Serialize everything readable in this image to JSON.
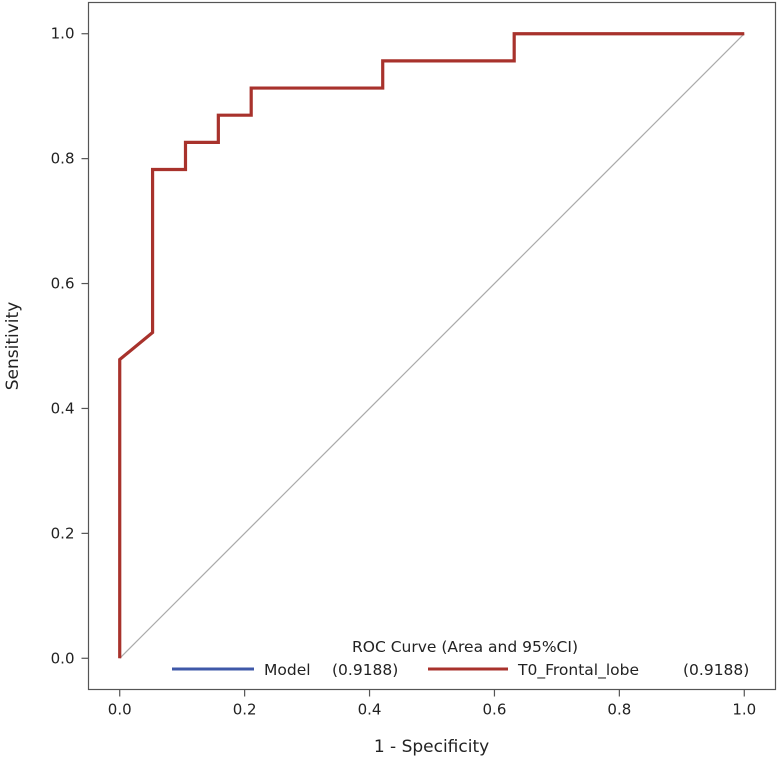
{
  "chart_data": {
    "type": "line",
    "title": "",
    "xlabel": "1 - Specificity",
    "ylabel": "Sensitivity",
    "xlim": [
      -0.05,
      1.05
    ],
    "ylim": [
      -0.05,
      1.05
    ],
    "grid": false,
    "xticks": [
      0.0,
      0.2,
      0.4,
      0.6,
      0.8,
      1.0
    ],
    "yticks": [
      0.0,
      0.2,
      0.4,
      0.6,
      0.8,
      1.0
    ],
    "xtick_labels": [
      "0.0",
      "0.2",
      "0.4",
      "0.6",
      "0.8",
      "1.0"
    ],
    "ytick_labels": [
      "0.0",
      "0.2",
      "0.4",
      "0.6",
      "0.8",
      "1.0"
    ],
    "reference_line": {
      "x": [
        0,
        1
      ],
      "y": [
        0,
        1
      ],
      "color": "#aaaaaa"
    },
    "legend": {
      "title": "ROC Curve (Area and 95%CI)",
      "placement": "bottom-right",
      "entries": [
        {
          "name": "Model",
          "value_label": "(0.9188)",
          "color": "#3f58a8"
        },
        {
          "name": "T0_Frontal_lobe",
          "value_label": "(0.9188)",
          "color": "#a8322c"
        }
      ]
    },
    "series": [
      {
        "name": "T0_Frontal_lobe",
        "color": "#a8322c",
        "x": [
          0.0,
          0.0,
          0.0526,
          0.0526,
          0.1053,
          0.1053,
          0.1579,
          0.1579,
          0.2105,
          0.2105,
          0.4211,
          0.4211,
          0.6316,
          0.6316,
          1.0
        ],
        "y": [
          0.0,
          0.4783,
          0.5217,
          0.7826,
          0.7826,
          0.8261,
          0.8261,
          0.8696,
          0.8696,
          0.913,
          0.913,
          0.9565,
          0.9565,
          1.0,
          1.0
        ]
      }
    ]
  }
}
